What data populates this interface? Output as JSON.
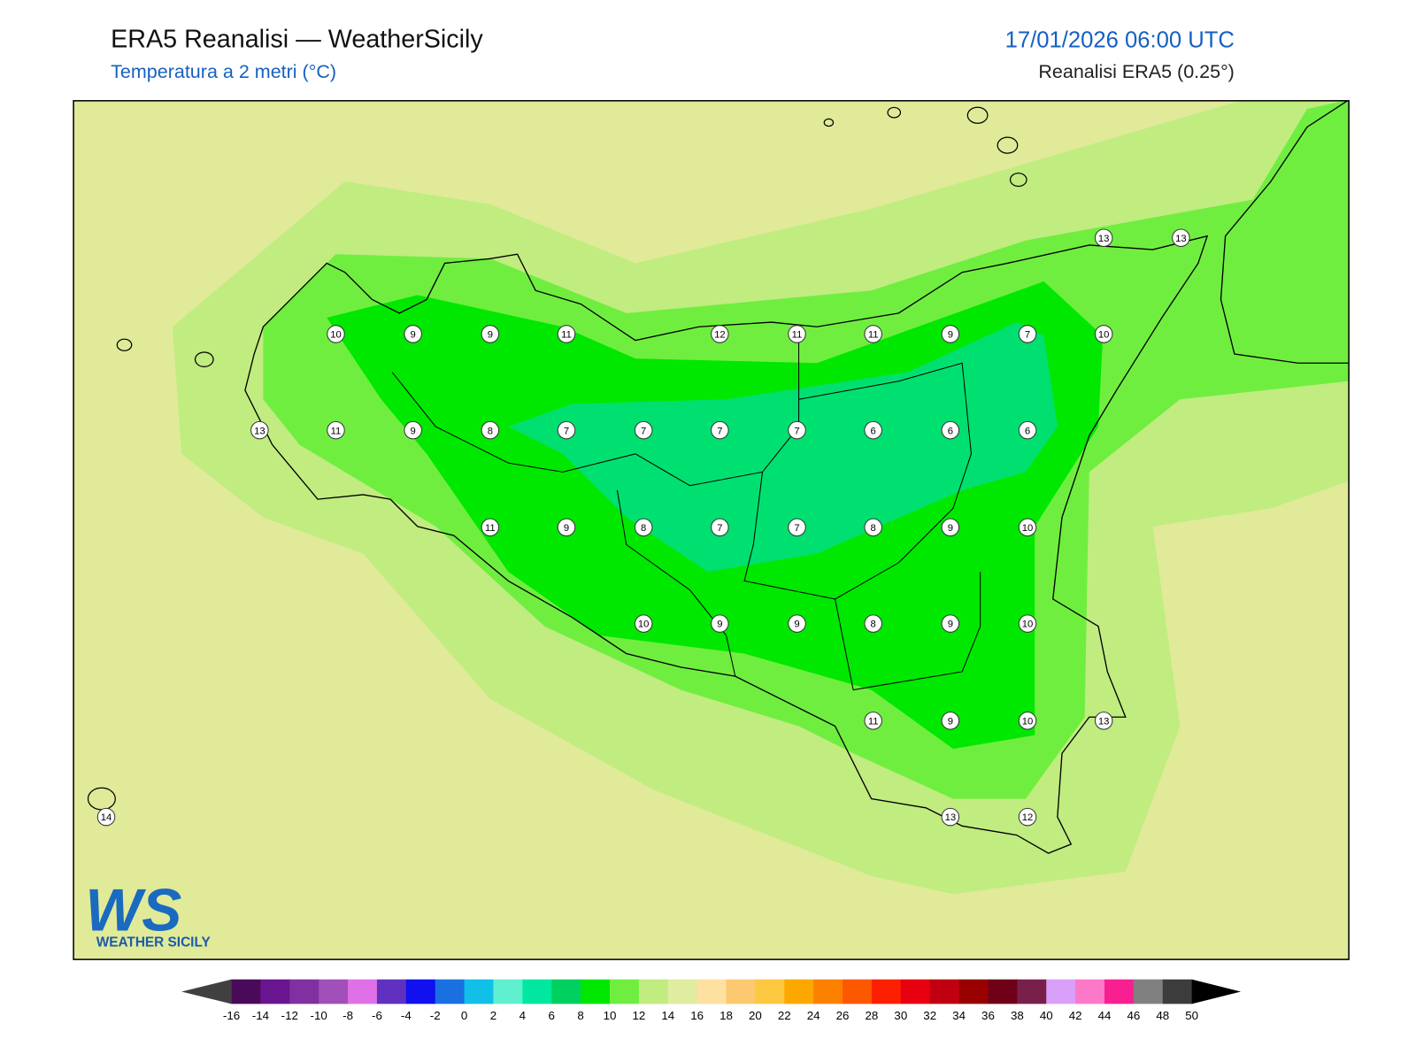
{
  "header": {
    "title": "ERA5 Reanalisi — WeatherSicily",
    "subtitle": "Temperatura a 2 metri (°C)",
    "datetime": "17/01/2026 06:00 UTC",
    "source": "Reanalisi ERA5 (0.25°)"
  },
  "map": {
    "background": "#e0ea98",
    "bands": [
      "#c0ec80",
      "#70ee40",
      "#00e800",
      "#00e070"
    ],
    "stations": [
      10,
      9,
      9,
      11,
      12,
      11,
      11,
      9,
      7,
      10,
      13,
      13,
      13,
      11,
      9,
      8,
      7,
      7,
      7,
      7,
      6,
      6,
      6,
      11,
      9,
      8,
      7,
      7,
      8,
      9,
      10,
      10,
      9,
      9,
      8,
      9,
      10,
      11,
      9,
      10,
      13,
      14,
      13,
      12
    ]
  },
  "logo": {
    "mark": "WS",
    "name": "WEATHER SICILY"
  },
  "colorbar": {
    "ticks": [
      -16,
      -14,
      -12,
      -10,
      -8,
      -6,
      -4,
      -2,
      0,
      2,
      4,
      6,
      8,
      10,
      12,
      14,
      16,
      18,
      20,
      22,
      24,
      26,
      28,
      30,
      32,
      34,
      36,
      38,
      40,
      42,
      44,
      46,
      48,
      50
    ],
    "colors": [
      "#4a0a5a",
      "#6a1590",
      "#8030a0",
      "#a050b8",
      "#e070e8",
      "#6030c0",
      "#1010f0",
      "#1a70e0",
      "#10c0e8",
      "#60f0d0",
      "#00e8a0",
      "#00d060",
      "#00e800",
      "#70ee40",
      "#c0ec80",
      "#e0eca0",
      "#fee0a0",
      "#fcc870",
      "#fcc840",
      "#fca800",
      "#fc8000",
      "#fc5800",
      "#fc2000",
      "#e80010",
      "#c00010",
      "#980000",
      "#700018",
      "#78204a",
      "#d8a0f8",
      "#fc78c8",
      "#f82090",
      "#808080",
      "#3c3c3c"
    ],
    "under": "#404040",
    "over": "#000000"
  }
}
